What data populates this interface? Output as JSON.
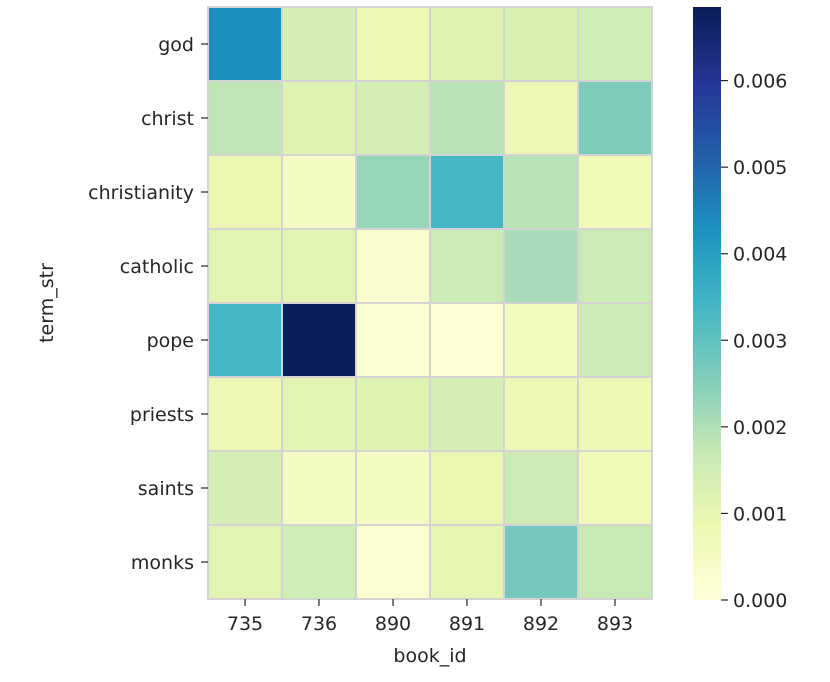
{
  "chart_data": {
    "type": "heatmap",
    "title": "",
    "xlabel": "book_id",
    "ylabel": "term_str",
    "x_categories": [
      "735",
      "736",
      "890",
      "891",
      "892",
      "893"
    ],
    "y_categories": [
      "god",
      "christ",
      "christianity",
      "catholic",
      "pope",
      "priests",
      "saints",
      "monks"
    ],
    "values": [
      [
        0.0043,
        0.0014,
        0.0008,
        0.0012,
        0.0013,
        0.0015
      ],
      [
        0.0018,
        0.0012,
        0.0014,
        0.0019,
        0.0008,
        0.0026
      ],
      [
        0.0009,
        0.0005,
        0.0023,
        0.0034,
        0.0019,
        0.0007
      ],
      [
        0.0011,
        0.0011,
        0.0003,
        0.0016,
        0.0021,
        0.0016
      ],
      [
        0.0034,
        0.0068,
        0.0002,
        0.0001,
        0.0006,
        0.0016
      ],
      [
        0.0008,
        0.0011,
        0.0012,
        0.0014,
        0.0008,
        0.0008
      ],
      [
        0.0014,
        0.0005,
        0.0005,
        0.0009,
        0.0016,
        0.0007
      ],
      [
        0.0011,
        0.0015,
        0.0002,
        0.001,
        0.0027,
        0.0017
      ]
    ],
    "colormap": "YlGnBu",
    "colormap_stops": [
      "#ffffd9",
      "#edf8b1",
      "#c7e9b4",
      "#7fcdbb",
      "#41b6c4",
      "#1d91c0",
      "#225ea8",
      "#253494",
      "#081d58"
    ],
    "vmin": 0.0,
    "vmax": 0.00685,
    "colorbar_ticks": [
      0.0,
      0.001,
      0.002,
      0.003,
      0.004,
      0.005,
      0.006
    ],
    "colorbar_tick_labels": [
      "0.000",
      "0.001",
      "0.002",
      "0.003",
      "0.004",
      "0.005",
      "0.006"
    ],
    "cell_border_color": "#d3d3d3",
    "grid": false,
    "legend": "colorbar-right"
  }
}
